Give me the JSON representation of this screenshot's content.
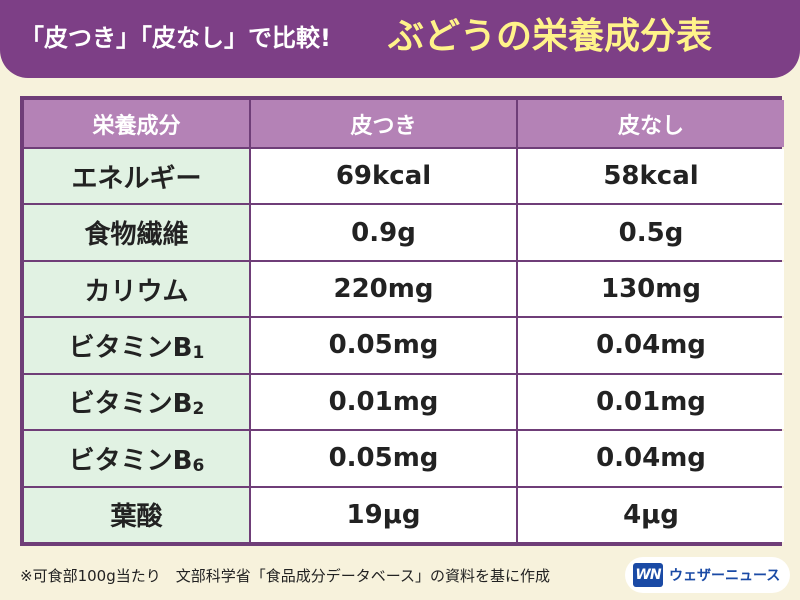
{
  "header": {
    "subtitle": "「皮つき」「皮なし」で比較!",
    "title": "ぶどうの栄養成分表"
  },
  "table": {
    "headers": [
      "栄養成分",
      "皮つき",
      "皮なし"
    ],
    "rows": [
      {
        "nutrient": "エネルギー",
        "sub": "",
        "with_skin": "69kcal",
        "without_skin": "58kcal"
      },
      {
        "nutrient": "食物繊維",
        "sub": "",
        "with_skin": "0.9g",
        "without_skin": "0.5g"
      },
      {
        "nutrient": "カリウム",
        "sub": "",
        "with_skin": "220mg",
        "without_skin": "130mg"
      },
      {
        "nutrient": "ビタミンB",
        "sub": "1",
        "with_skin": "0.05mg",
        "without_skin": "0.04mg"
      },
      {
        "nutrient": "ビタミンB",
        "sub": "2",
        "with_skin": "0.01mg",
        "without_skin": "0.01mg"
      },
      {
        "nutrient": "ビタミンB",
        "sub": "6",
        "with_skin": "0.05mg",
        "without_skin": "0.04mg"
      },
      {
        "nutrient": "葉酸",
        "sub": "",
        "with_skin": "19μg",
        "without_skin": "4μg"
      }
    ]
  },
  "footer": {
    "note": "※可食部100g当たり　文部科学省「食品成分データベース」の資料を基に作成",
    "logo_mark": "WN",
    "logo_text": "ウェザーニュース"
  },
  "colors": {
    "header_bg": "#7d3f86",
    "title": "#fff38a",
    "table_header_bg": "#b482b6",
    "nutrient_bg": "#e1f2e3",
    "page_bg": "#f7f2dc",
    "logo_blue": "#1a4aa5"
  }
}
